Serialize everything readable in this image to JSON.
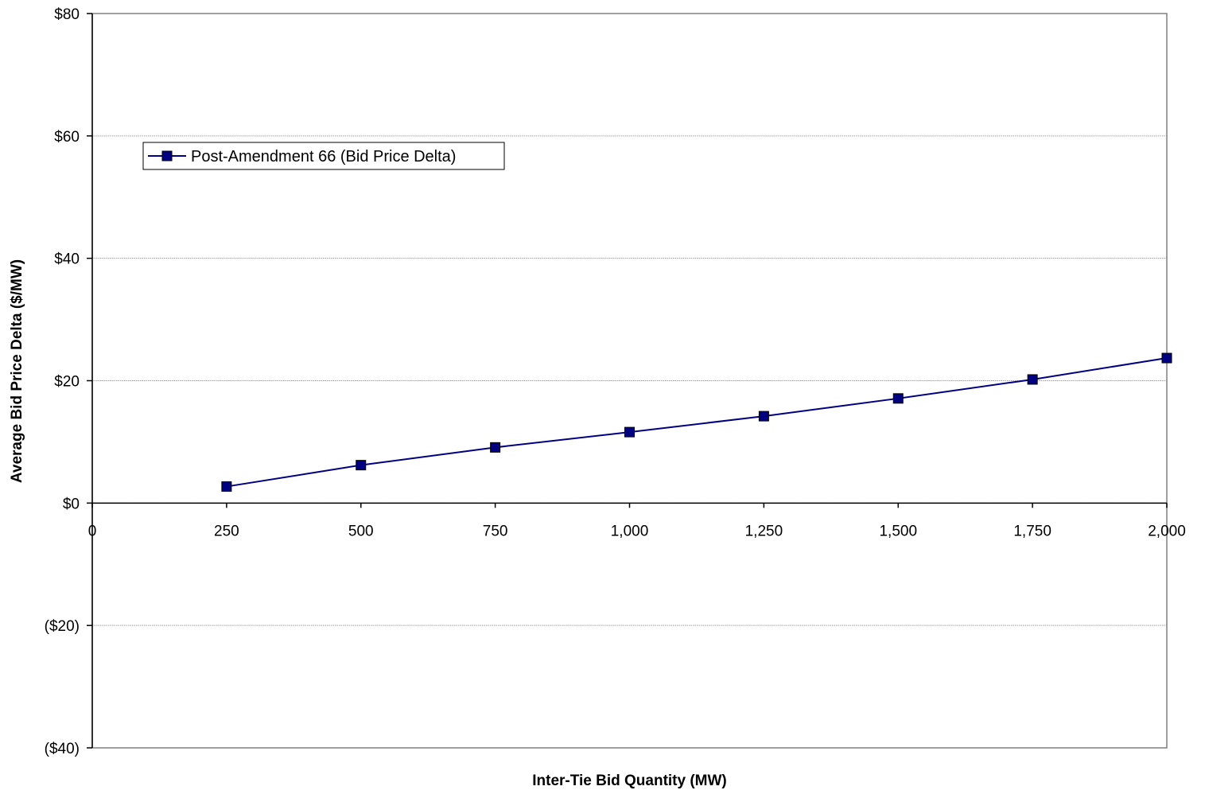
{
  "chart_data": {
    "type": "line",
    "title": "",
    "xlabel": "Inter-Tie Bid Quantity (MW)",
    "ylabel": "Average Bid Price Delta ($/MW)",
    "xlim": [
      0,
      2000
    ],
    "ylim": [
      -40,
      80
    ],
    "x_ticks": [
      0,
      250,
      500,
      750,
      1000,
      1250,
      1500,
      1750,
      2000
    ],
    "x_tick_labels": [
      "0",
      "250",
      "500",
      "750",
      "1,000",
      "1,250",
      "1,500",
      "1,750",
      "2,000"
    ],
    "y_ticks": [
      -40,
      -20,
      0,
      20,
      40,
      60,
      80
    ],
    "y_tick_labels": [
      "($40)",
      "($20)",
      "$0",
      "$20",
      "$40",
      "$60",
      "$80"
    ],
    "grid": "horizontal",
    "legend_position": "top-left",
    "series": [
      {
        "name": "Post-Amendment 66 (Bid Price Delta)",
        "color": "#000080",
        "marker": "square",
        "x": [
          250,
          500,
          750,
          1000,
          1250,
          1500,
          1750,
          2000
        ],
        "y": [
          2.7,
          6.2,
          9.1,
          11.6,
          14.2,
          17.1,
          20.2,
          23.7
        ]
      }
    ]
  }
}
